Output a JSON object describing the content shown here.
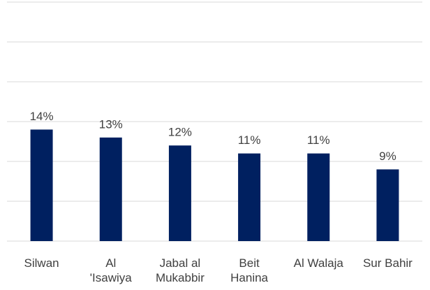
{
  "chart_data": {
    "type": "bar",
    "categories": [
      "Silwan",
      "Al\n'Isawiya",
      "Jabal al\nMukabbir",
      "Beit\nHanina",
      "Al Walaja",
      "Sur Bahir"
    ],
    "values": [
      14,
      13,
      12,
      11,
      11,
      9
    ],
    "value_labels": [
      "14%",
      "13%",
      "12%",
      "11%",
      "11%",
      "9%"
    ],
    "color": "#002060",
    "ylim": [
      0,
      30
    ],
    "yticks": [
      0,
      5,
      10,
      15,
      20,
      25,
      30
    ],
    "grid": true
  }
}
